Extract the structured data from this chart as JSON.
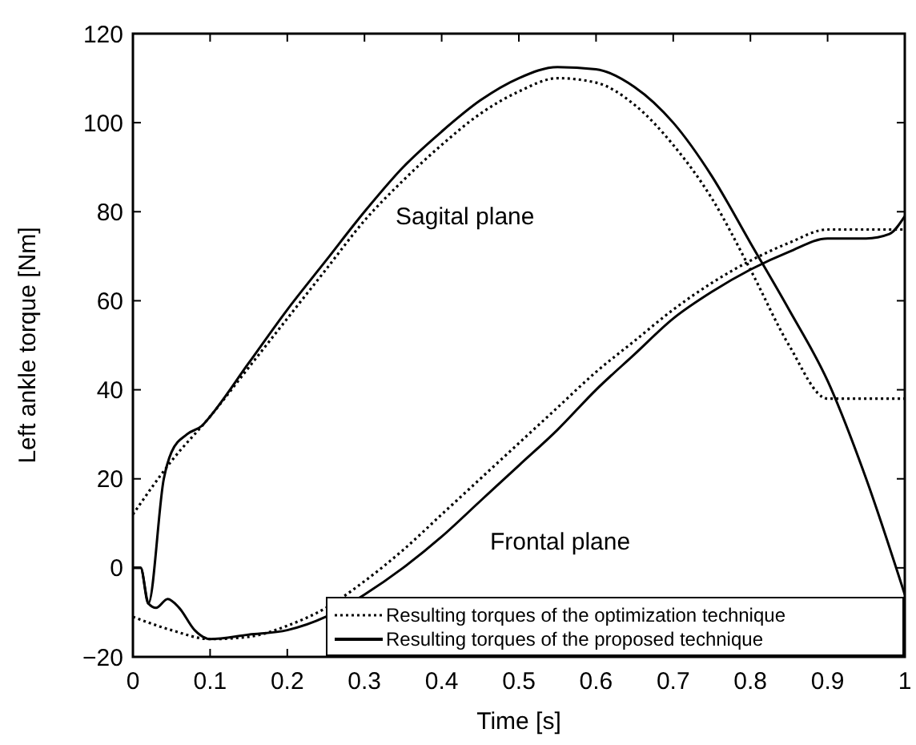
{
  "chart_data": {
    "type": "line",
    "xlabel": "Time [s]",
    "ylabel": "Left ankle torque [Nm]",
    "xlim": [
      0,
      1
    ],
    "ylim": [
      -20,
      120
    ],
    "xticks": [
      0,
      0.1,
      0.2,
      0.3,
      0.4,
      0.5,
      0.6,
      0.7,
      0.8,
      0.9,
      1
    ],
    "yticks": [
      {
        "value": -20,
        "label": "−20"
      },
      0,
      20,
      40,
      60,
      80,
      100,
      120
    ],
    "grid": false,
    "legend": "bottom right",
    "annotations": [
      "Sagital plane",
      "Frontal plane"
    ],
    "series": [
      {
        "name": "Resulting torques of the optimization technique",
        "color": "#000000",
        "line_style": "dotted",
        "x": [
          0,
          0.05,
          0.1,
          0.15,
          0.2,
          0.25,
          0.3,
          0.35,
          0.4,
          0.45,
          0.5,
          0.55,
          0.6,
          0.65,
          0.7,
          0.75,
          0.8,
          0.85,
          0.9,
          0.95,
          1
        ],
        "values": [
          12,
          24,
          34,
          45,
          56,
          67,
          78,
          87,
          95,
          102,
          107,
          110,
          109,
          104,
          95,
          83,
          67,
          50,
          38,
          38,
          38
        ]
      },
      {
        "name": "Resulting torques of the proposed technique",
        "color": "#000000",
        "line_style": "solid",
        "x": [
          0,
          0.01,
          0.02,
          0.04,
          0.05,
          0.07,
          0.09,
          0.1,
          0.15,
          0.2,
          0.25,
          0.3,
          0.35,
          0.4,
          0.45,
          0.5,
          0.55,
          0.6,
          0.65,
          0.7,
          0.75,
          0.8,
          0.85,
          0.9,
          0.95,
          1
        ],
        "values": [
          0,
          0,
          -8,
          20,
          26,
          30,
          32,
          34,
          46,
          58,
          69,
          80,
          90,
          98,
          105,
          110,
          112.5,
          112,
          108,
          100,
          88,
          73,
          58,
          42,
          20,
          -6
        ]
      },
      {
        "color": "#000000",
        "line_style": "dotted",
        "x": [
          0,
          0.05,
          0.1,
          0.15,
          0.2,
          0.25,
          0.3,
          0.35,
          0.4,
          0.45,
          0.5,
          0.55,
          0.6,
          0.65,
          0.7,
          0.75,
          0.8,
          0.85,
          0.9,
          0.95,
          1
        ],
        "values": [
          -11,
          -14,
          -16,
          -15.5,
          -13,
          -9,
          -3,
          4,
          12,
          20,
          28,
          36,
          44,
          51,
          58,
          64,
          69,
          73,
          76,
          76,
          76
        ]
      },
      {
        "color": "#000000",
        "line_style": "solid",
        "x": [
          0,
          0.01,
          0.02,
          0.03,
          0.045,
          0.06,
          0.08,
          0.1,
          0.15,
          0.2,
          0.25,
          0.3,
          0.35,
          0.4,
          0.45,
          0.5,
          0.55,
          0.6,
          0.65,
          0.7,
          0.75,
          0.8,
          0.85,
          0.9,
          0.95,
          0.98,
          1
        ],
        "values": [
          0,
          0,
          -8,
          -9,
          -7,
          -9,
          -14,
          -16,
          -15,
          -14,
          -11,
          -6,
          0,
          7,
          15,
          23,
          31,
          40,
          48,
          56,
          62,
          67,
          71,
          74,
          74,
          75,
          79
        ]
      }
    ]
  }
}
